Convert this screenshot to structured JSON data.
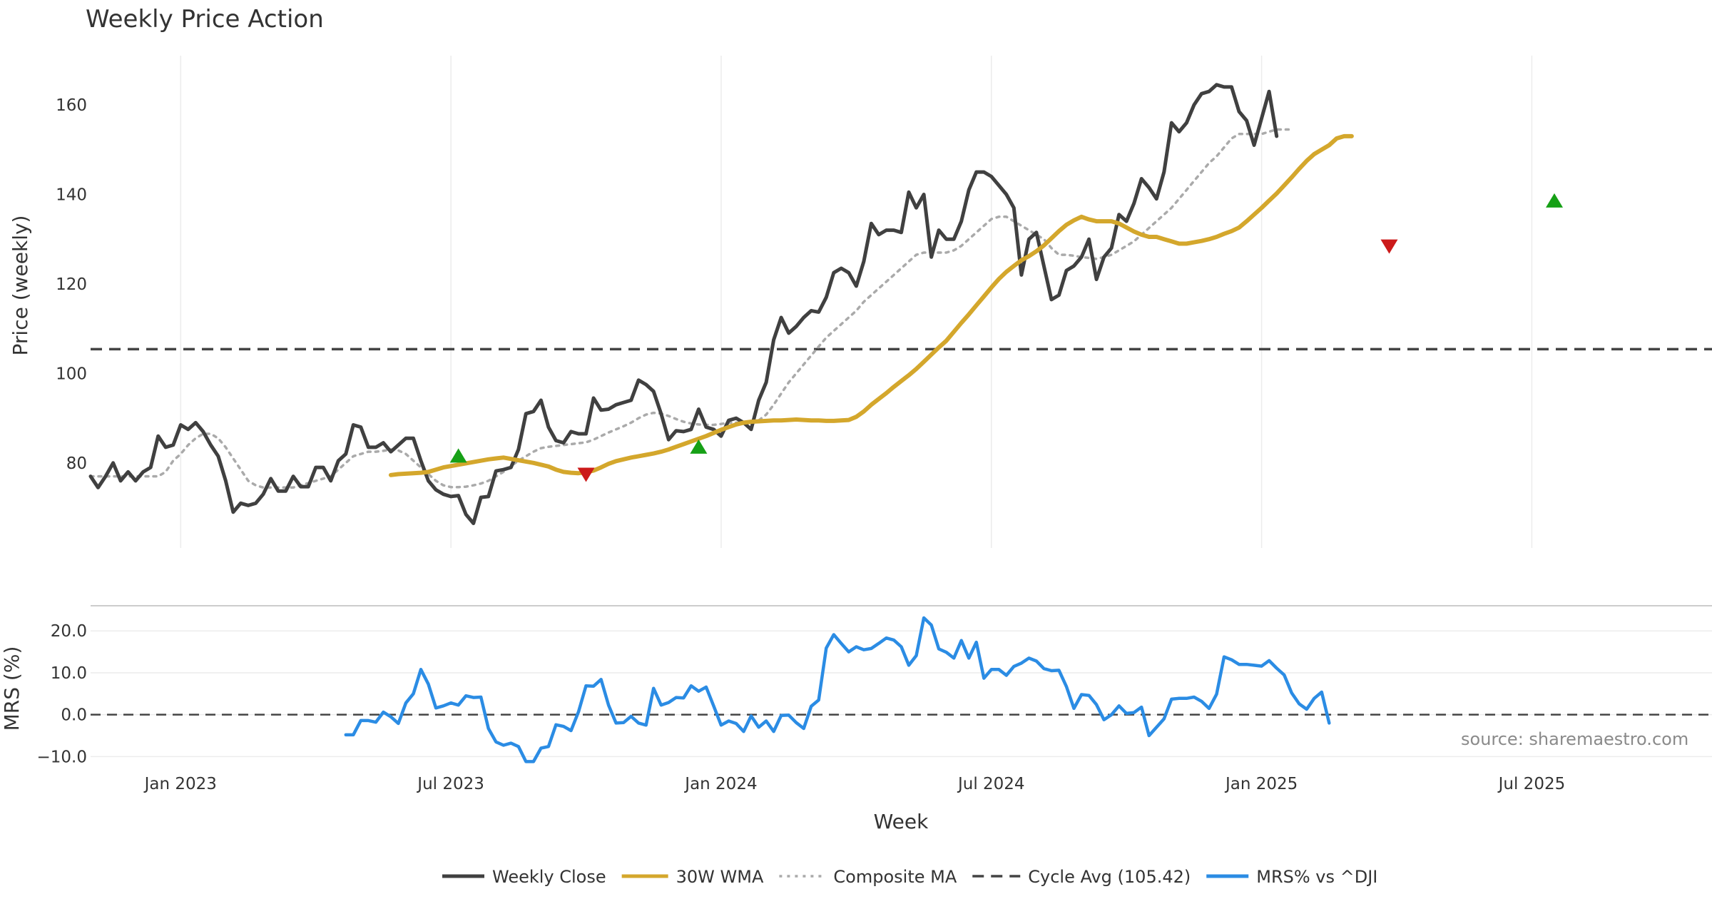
{
  "chart_data": {
    "type": "line",
    "title": "Weekly Price Action",
    "xlabel": "Week",
    "source": "source: sharemaestro.com",
    "x_ticks": [
      "Jan 2023",
      "Jul 2023",
      "Jan 2024",
      "Jul 2024",
      "Jan 2025",
      "Jul 2025"
    ],
    "x_tick_weeks": [
      12,
      48,
      84,
      120,
      156,
      192
    ],
    "week_range": [
      0,
      216
    ],
    "price_panel": {
      "ylabel": "Price (weekly)",
      "ylim": [
        61,
        171
      ],
      "yticks": [
        80,
        100,
        120,
        140,
        160
      ],
      "ytick_labels": [
        "80",
        "100",
        "120",
        "140",
        "160"
      ],
      "grid": true,
      "cycle_avg": 105.42,
      "series": [
        {
          "name": "Weekly Close",
          "color": "#404040",
          "start_week": 0,
          "values": [
            77,
            74.5,
            77,
            80,
            76,
            78,
            76,
            78,
            79,
            86,
            83.5,
            84,
            88.5,
            87.5,
            89,
            87,
            84,
            81.5,
            76,
            69,
            71,
            70.5,
            71,
            73,
            76.5,
            73.7,
            73.7,
            77,
            74.7,
            74.7,
            79,
            79,
            76,
            80.5,
            82,
            88.5,
            88,
            83.5,
            83.5,
            84.5,
            82.5,
            84,
            85.5,
            85.5,
            80.5,
            76,
            74,
            73,
            72.5,
            72.7,
            68.5,
            66.5,
            72.3,
            72.5,
            78.2,
            78.5,
            79,
            83,
            91,
            91.5,
            94,
            88,
            85,
            84.5,
            87,
            86.5,
            86.5,
            94.5,
            91.8,
            92,
            93,
            93.5,
            94,
            98.5,
            97.5,
            96,
            91,
            85.2,
            87.2,
            87,
            87.5,
            92,
            88,
            87.5,
            86,
            89.5,
            90,
            89,
            87.5,
            94,
            98,
            107.5,
            112.5,
            109,
            110.5,
            112.5,
            114,
            113.7,
            117,
            122.5,
            123.5,
            122.5,
            119.5,
            125,
            133.5,
            131,
            132,
            132,
            131.5,
            140.5,
            137,
            140,
            126,
            132,
            130,
            130,
            134,
            141,
            145,
            145,
            144,
            142,
            140,
            137,
            122,
            130,
            131.5,
            124,
            116.5,
            117.5,
            123,
            124,
            126,
            130,
            121,
            126,
            128,
            135.5,
            134,
            138,
            143.5,
            141.5,
            139,
            145,
            156,
            154,
            156,
            160,
            162.5,
            163,
            164.5,
            164,
            164,
            158.5,
            156.5,
            151,
            157,
            163,
            153
          ]
        },
        {
          "name": "30W WMA",
          "color": "#d4a72c",
          "start_week": 40,
          "values": [
            77.3,
            77.5,
            77.6,
            77.7,
            77.8,
            78,
            78.5,
            79,
            79.3,
            79.6,
            79.9,
            80.2,
            80.5,
            80.8,
            81,
            81.2,
            80.9,
            80.6,
            80.3,
            80,
            79.6,
            79.2,
            78.5,
            78,
            77.8,
            77.7,
            77.9,
            78.3,
            79,
            79.8,
            80.4,
            80.8,
            81.2,
            81.5,
            81.8,
            82.1,
            82.5,
            83,
            83.6,
            84.2,
            84.8,
            85.4,
            86,
            86.7,
            87.4,
            88,
            88.6,
            89,
            89.2,
            89.3,
            89.4,
            89.5,
            89.5,
            89.6,
            89.7,
            89.6,
            89.5,
            89.5,
            89.4,
            89.4,
            89.5,
            89.6,
            90.3,
            91.5,
            93,
            94.3,
            95.6,
            97,
            98.3,
            99.6,
            101,
            102.6,
            104.2,
            105.8,
            107.3,
            109.3,
            111.3,
            113.2,
            115.2,
            117.2,
            119.2,
            121.1,
            122.7,
            124,
            125.3,
            126.2,
            127.3,
            128.6,
            130.2,
            131.8,
            133.2,
            134.2,
            135,
            134.4,
            134,
            134,
            134,
            133.5,
            132.6,
            131.7,
            131,
            130.5,
            130.5,
            130,
            129.5,
            129,
            129,
            129.3,
            129.6,
            130,
            130.5,
            131.2,
            131.8,
            132.6,
            134,
            135.5,
            137,
            138.6,
            140.2,
            142,
            143.8,
            145.7,
            147.5,
            149,
            150,
            151,
            152.5,
            153,
            153
          ]
        },
        {
          "name": "Composite MA",
          "color": "#aaaaaa",
          "start_week": 0,
          "values": [
            77,
            77,
            77,
            77,
            77,
            77,
            77,
            77,
            77,
            77,
            78,
            80.5,
            82,
            84,
            85.5,
            86.5,
            86.5,
            85.5,
            83.5,
            81,
            78.5,
            76,
            75,
            74.5,
            74.5,
            74.5,
            74.5,
            74.5,
            75,
            75.5,
            76,
            76.5,
            77,
            78.5,
            80,
            81.5,
            82,
            82.5,
            82.5,
            82.7,
            83,
            82.8,
            82,
            80.5,
            79,
            77.5,
            76,
            75,
            74.6,
            74.6,
            74.7,
            75,
            75.4,
            76,
            77,
            78,
            79.3,
            80.5,
            81.5,
            82.5,
            83.3,
            83.6,
            83.8,
            84,
            84.2,
            84.4,
            84.6,
            85.2,
            86,
            86.8,
            87.5,
            88.2,
            89,
            90,
            90.8,
            91.2,
            91,
            90.5,
            89.8,
            89.2,
            88.8,
            88.6,
            88.5,
            88.5,
            88.7,
            89,
            89,
            89,
            89,
            89.5,
            90.8,
            93,
            95.5,
            98,
            100,
            102,
            104,
            106,
            108,
            109.5,
            111,
            112.5,
            114,
            116,
            117.5,
            119,
            120.5,
            122,
            123.5,
            125,
            126.5,
            127,
            127,
            127,
            127,
            127.5,
            128.5,
            130,
            131.5,
            133,
            134.5,
            135,
            135,
            134,
            133,
            132,
            131,
            130,
            128,
            126.5,
            126.5,
            126.3,
            126,
            125.8,
            125.6,
            126,
            126.5,
            127.5,
            128.5,
            129.5,
            131,
            132.5,
            134,
            135.5,
            137,
            139,
            141,
            143,
            145,
            147,
            148.5,
            150.5,
            152.5,
            153.5,
            153.5,
            153.5,
            153.5,
            154,
            154.5,
            154.5,
            154.5
          ]
        },
        {
          "name": "Cycle Avg (105.42)",
          "color": "#444444",
          "constant": 105.42
        }
      ],
      "signals": [
        {
          "type": "buy",
          "week": 49,
          "price": 81.5
        },
        {
          "type": "sell",
          "week": 66,
          "price": 77.5
        },
        {
          "type": "buy",
          "week": 81,
          "price": 83.5
        },
        {
          "type": "sell",
          "week": 173,
          "price": 128.5
        },
        {
          "type": "buy",
          "week": 195,
          "price": 138.5
        }
      ]
    },
    "mrs_panel": {
      "ylabel": "MRS (%)",
      "ylim": [
        -13,
        26
      ],
      "yticks": [
        20,
        10,
        0,
        -10
      ],
      "ytick_labels": [
        "20.0",
        "10.0",
        "0.0",
        "−10.0"
      ],
      "zero_line": 0,
      "series": [
        {
          "name": "MRS% vs ^DJI",
          "color": "#2b8ce4",
          "start_week": 34,
          "values": [
            -4.8,
            -4.8,
            -1.4,
            -1.4,
            -1.8,
            0.6,
            -0.5,
            -2.1,
            2.8,
            5,
            10.8,
            7.3,
            1.6,
            2.1,
            2.8,
            2.3,
            4.5,
            4.1,
            4.2,
            -3.3,
            -6.5,
            -7.3,
            -6.8,
            -7.6,
            -11.2,
            -11.2,
            -8,
            -7.6,
            -2.4,
            -2.8,
            -3.8,
            0.7,
            6.9,
            6.8,
            8.4,
            2.3,
            -2,
            -1.9,
            -0.4,
            -2,
            -2.5,
            6.3,
            2.3,
            2.9,
            4.1,
            4,
            6.9,
            5.6,
            6.6,
            2.1,
            -2.5,
            -1.5,
            -2.1,
            -4,
            -0.3,
            -3,
            -1.5,
            -4,
            -0.2,
            -0.1,
            -1.9,
            -3.3,
            2,
            3.5,
            15.9,
            19.1,
            17,
            15,
            16.2,
            15.5,
            15.8,
            17,
            18.3,
            17.8,
            16.2,
            11.8,
            14.1,
            23.1,
            21.4,
            15.7,
            14.9,
            13.5,
            17.7,
            13.5,
            17.3,
            8.7,
            10.8,
            10.8,
            9.4,
            11.5,
            12.3,
            13.5,
            12.8,
            11,
            10.5,
            10.6,
            6.7,
            1.5,
            4.8,
            4.6,
            2.4,
            -1.2,
            0,
            2.1,
            0.3,
            0.5,
            1.8,
            -5,
            -3,
            -1,
            3.7,
            3.9,
            3.9,
            4.2,
            3.2,
            1.5,
            4.9,
            13.8,
            13.1,
            12,
            12,
            11.8,
            11.6,
            12.9,
            11.1,
            9.5,
            5.2,
            2.6,
            1.3,
            3.9,
            5.4,
            -2
          ]
        }
      ]
    },
    "legend": {
      "placement": "bottom-center",
      "entries": [
        {
          "label": "Weekly Close",
          "style": "solid",
          "color": "#404040"
        },
        {
          "label": "30W WMA",
          "style": "solid",
          "color": "#d4a72c"
        },
        {
          "label": "Composite MA",
          "style": "dotted",
          "color": "#aaaaaa"
        },
        {
          "label": "Cycle Avg (105.42)",
          "style": "dashed",
          "color": "#444444"
        },
        {
          "label": "MRS% vs ^DJI",
          "style": "solid",
          "color": "#2b8ce4"
        }
      ]
    }
  }
}
